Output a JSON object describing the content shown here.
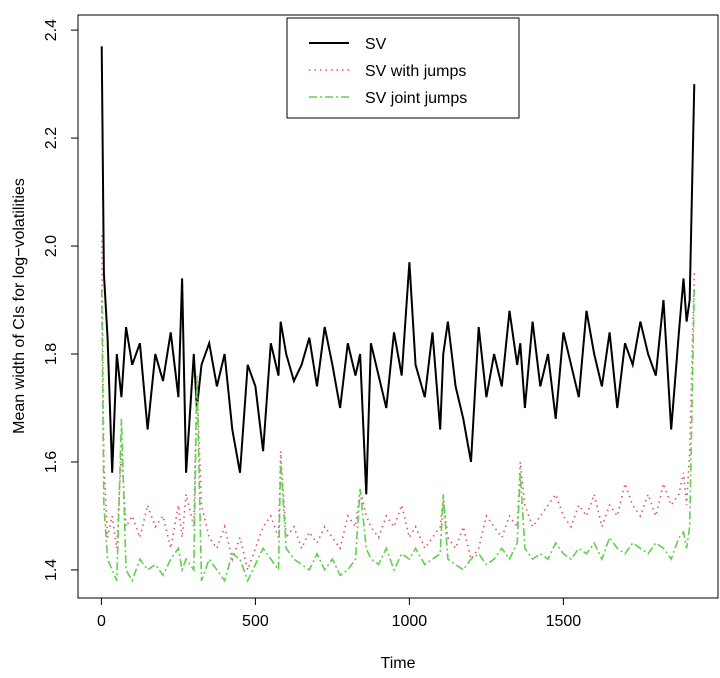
{
  "chart_data": {
    "type": "line",
    "xlabel": "Time",
    "ylabel": "Mean width of CIs for log−volatilities",
    "x": [
      1,
      8,
      20,
      35,
      50,
      65,
      80,
      100,
      125,
      150,
      175,
      200,
      225,
      250,
      262,
      275,
      300,
      310,
      325,
      350,
      375,
      400,
      425,
      450,
      475,
      500,
      525,
      550,
      575,
      582,
      600,
      625,
      650,
      675,
      700,
      725,
      750,
      775,
      800,
      825,
      840,
      860,
      875,
      900,
      925,
      950,
      975,
      1000,
      1020,
      1050,
      1075,
      1100,
      1110,
      1125,
      1150,
      1175,
      1200,
      1225,
      1250,
      1275,
      1300,
      1325,
      1350,
      1360,
      1375,
      1400,
      1425,
      1450,
      1475,
      1500,
      1525,
      1550,
      1575,
      1600,
      1625,
      1650,
      1675,
      1700,
      1725,
      1750,
      1775,
      1800,
      1825,
      1850,
      1875,
      1890,
      1900,
      1910,
      1925
    ],
    "series": [
      {
        "name": "SV",
        "color": "#000000",
        "linestyle": "solid",
        "values": [
          2.37,
          1.95,
          1.83,
          1.58,
          1.8,
          1.72,
          1.85,
          1.78,
          1.82,
          1.66,
          1.8,
          1.75,
          1.84,
          1.72,
          1.94,
          1.58,
          1.8,
          1.7,
          1.78,
          1.82,
          1.74,
          1.8,
          1.66,
          1.58,
          1.78,
          1.74,
          1.62,
          1.82,
          1.76,
          1.86,
          1.8,
          1.75,
          1.78,
          1.83,
          1.74,
          1.85,
          1.78,
          1.7,
          1.82,
          1.76,
          1.8,
          1.54,
          1.82,
          1.76,
          1.7,
          1.84,
          1.76,
          1.97,
          1.78,
          1.72,
          1.84,
          1.66,
          1.8,
          1.86,
          1.74,
          1.68,
          1.6,
          1.85,
          1.72,
          1.8,
          1.74,
          1.88,
          1.78,
          1.82,
          1.7,
          1.86,
          1.74,
          1.8,
          1.68,
          1.84,
          1.78,
          1.72,
          1.88,
          1.8,
          1.74,
          1.84,
          1.7,
          1.82,
          1.78,
          1.86,
          1.8,
          1.76,
          1.9,
          1.66,
          1.84,
          1.94,
          1.86,
          1.9,
          2.3
        ]
      },
      {
        "name": "SV with jumps",
        "color": "#DF536B",
        "linestyle": "dotted",
        "values": [
          2.02,
          1.6,
          1.46,
          1.5,
          1.44,
          1.62,
          1.48,
          1.5,
          1.46,
          1.52,
          1.48,
          1.5,
          1.44,
          1.52,
          1.46,
          1.54,
          1.48,
          1.75,
          1.52,
          1.46,
          1.44,
          1.48,
          1.42,
          1.46,
          1.4,
          1.44,
          1.48,
          1.5,
          1.46,
          1.62,
          1.46,
          1.48,
          1.44,
          1.47,
          1.45,
          1.48,
          1.46,
          1.44,
          1.5,
          1.48,
          1.55,
          1.5,
          1.48,
          1.46,
          1.5,
          1.48,
          1.52,
          1.46,
          1.48,
          1.44,
          1.46,
          1.48,
          1.53,
          1.46,
          1.44,
          1.48,
          1.42,
          1.44,
          1.5,
          1.48,
          1.46,
          1.5,
          1.48,
          1.6,
          1.52,
          1.48,
          1.5,
          1.52,
          1.54,
          1.5,
          1.48,
          1.52,
          1.5,
          1.54,
          1.48,
          1.52,
          1.5,
          1.56,
          1.52,
          1.5,
          1.54,
          1.5,
          1.56,
          1.52,
          1.54,
          1.58,
          1.52,
          1.62,
          1.95
        ]
      },
      {
        "name": "SV joint jumps",
        "color": "#61D04F",
        "linestyle": "dashdot",
        "values": [
          1.92,
          1.52,
          1.42,
          1.4,
          1.38,
          1.68,
          1.4,
          1.38,
          1.42,
          1.4,
          1.41,
          1.39,
          1.42,
          1.44,
          1.4,
          1.42,
          1.4,
          1.76,
          1.38,
          1.42,
          1.4,
          1.38,
          1.43,
          1.42,
          1.38,
          1.41,
          1.44,
          1.42,
          1.4,
          1.6,
          1.44,
          1.42,
          1.41,
          1.4,
          1.43,
          1.4,
          1.42,
          1.39,
          1.4,
          1.42,
          1.55,
          1.44,
          1.42,
          1.41,
          1.44,
          1.4,
          1.43,
          1.42,
          1.44,
          1.41,
          1.42,
          1.43,
          1.54,
          1.42,
          1.41,
          1.4,
          1.42,
          1.43,
          1.41,
          1.42,
          1.44,
          1.42,
          1.45,
          1.58,
          1.44,
          1.42,
          1.43,
          1.42,
          1.45,
          1.43,
          1.42,
          1.44,
          1.43,
          1.45,
          1.42,
          1.46,
          1.44,
          1.43,
          1.45,
          1.44,
          1.43,
          1.45,
          1.44,
          1.42,
          1.46,
          1.47,
          1.44,
          1.48,
          1.92
        ]
      }
    ],
    "xlim": [
      -76,
      2002
    ],
    "xticks": [
      0,
      500,
      1000,
      1500
    ],
    "ylim": [
      1.348,
      2.428
    ],
    "yticks": [
      1.4,
      1.6,
      1.8,
      {
        "value": 2,
        "label": "2.0"
      },
      2.2,
      2.4
    ],
    "legend": "top"
  }
}
